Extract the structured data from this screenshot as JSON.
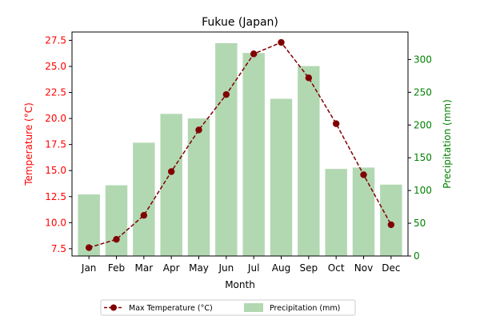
{
  "chart_data": {
    "type": "bar+line",
    "title": "Fukue (Japan)",
    "xlabel": "Month",
    "ylabel_left": "Temperature (°C)",
    "ylabel_right": "Precipitation (mm)",
    "categories": [
      "Jan",
      "Feb",
      "Mar",
      "Apr",
      "May",
      "Jun",
      "Jul",
      "Aug",
      "Sep",
      "Oct",
      "Nov",
      "Dec"
    ],
    "ylim_left": [
      6.8,
      28.3
    ],
    "ylim_right": [
      0,
      342
    ],
    "yticks_left": [
      "7.5",
      "10.0",
      "12.5",
      "15.0",
      "17.5",
      "20.0",
      "22.5",
      "25.0",
      "27.5"
    ],
    "yticks_right": [
      "0",
      "50",
      "100",
      "150",
      "200",
      "250",
      "300"
    ],
    "series": [
      {
        "name": "Max Temperature (°C)",
        "kind": "line",
        "axis": "left",
        "color": "#800000",
        "style": "dashed",
        "marker": "circle",
        "values": [
          7.6,
          8.4,
          10.7,
          14.9,
          18.9,
          22.3,
          26.2,
          27.3,
          23.9,
          19.5,
          14.6,
          9.8
        ]
      },
      {
        "name": "Precipitation (mm)",
        "kind": "bar",
        "axis": "right",
        "color": "#b2d8b2",
        "values": [
          94,
          108,
          173,
          217,
          210,
          325,
          310,
          240,
          290,
          133,
          135,
          109
        ]
      }
    ],
    "left_axis_color": "#ff0000",
    "right_axis_color": "#008000",
    "legend_position": "bottom-center",
    "grid": false
  }
}
